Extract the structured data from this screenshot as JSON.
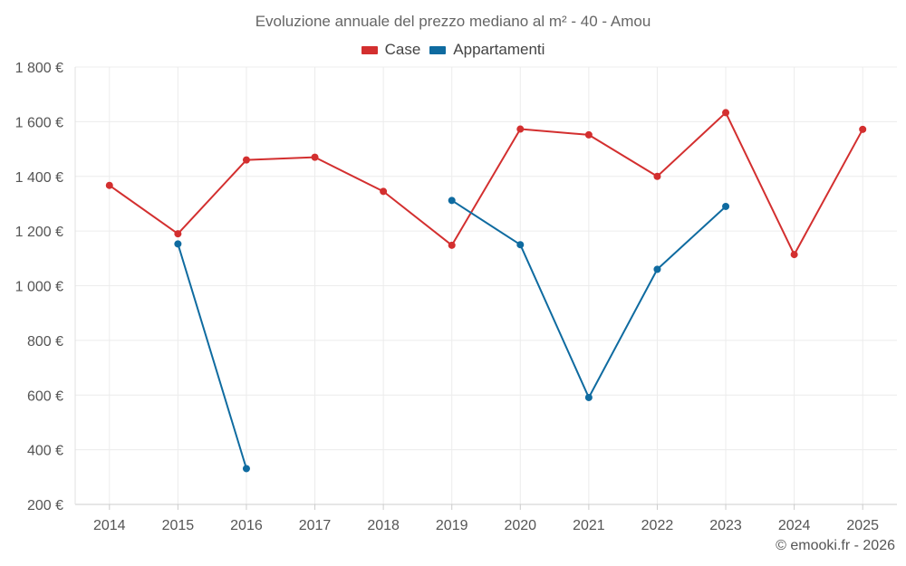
{
  "chart_data": {
    "type": "line",
    "title": "Evoluzione annuale del prezzo mediano al m² - 40 - Amou",
    "categories": [
      "2014",
      "2015",
      "2016",
      "2017",
      "2018",
      "2019",
      "2020",
      "2021",
      "2022",
      "2023",
      "2024",
      "2025"
    ],
    "y_ticks": [
      "200 €",
      "400 €",
      "600 €",
      "800 €",
      "1 000 €",
      "1 200 €",
      "1 400 €",
      "1 600 €",
      "1 800 €"
    ],
    "ylim": [
      200,
      1800
    ],
    "grid": true,
    "legend_position": "top-center",
    "series": [
      {
        "name": "Case",
        "color": "#d32f2f",
        "values": [
          1367,
          1190,
          1460,
          1470,
          1345,
          1148,
          1573,
          1552,
          1400,
          1633,
          1114,
          1572
        ]
      },
      {
        "name": "Appartamenti",
        "color": "#0f6ba0",
        "values": [
          null,
          1153,
          331,
          null,
          null,
          1312,
          1150,
          591,
          1060,
          1290,
          null,
          null
        ]
      }
    ]
  },
  "copyright": "© emooki.fr - 2026"
}
